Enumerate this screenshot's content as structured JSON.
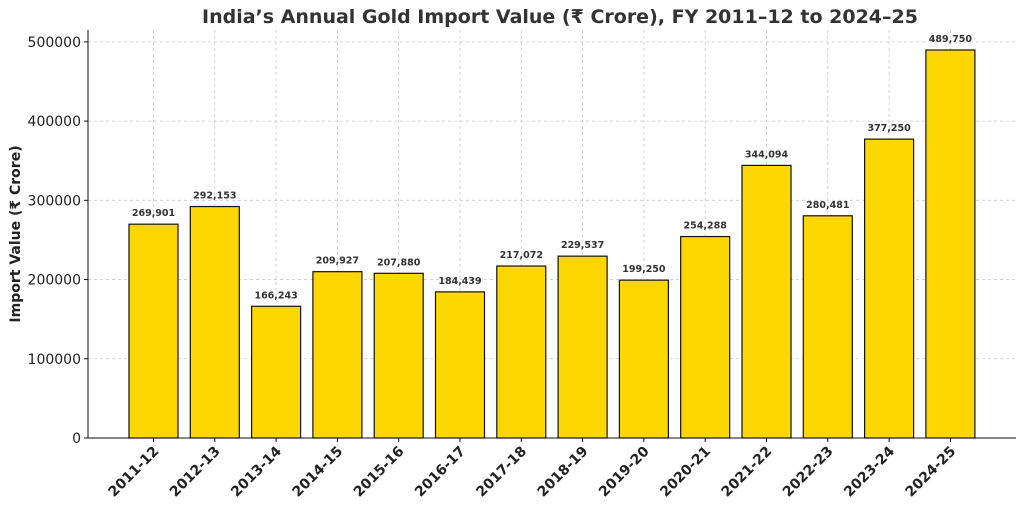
{
  "chart_data": {
    "type": "bar",
    "title": "India’s Annual Gold Import Value (₹ Crore), FY 2011–12 to 2024–25",
    "xlabel": "",
    "ylabel": "Import Value (₹ Crore)",
    "ylim": [
      0,
      515000
    ],
    "yticks": [
      0,
      100000,
      200000,
      300000,
      400000,
      500000
    ],
    "ytick_labels": [
      "0",
      "100000",
      "200000",
      "300000",
      "400000",
      "500000"
    ],
    "categories": [
      "2011-12",
      "2012-13",
      "2013-14",
      "2014-15",
      "2015-16",
      "2016-17",
      "2017-18",
      "2018-19",
      "2019-20",
      "2020-21",
      "2021-22",
      "2022-23",
      "2023-24",
      "2024-25"
    ],
    "values": [
      269901,
      292153,
      166243,
      209927,
      207880,
      184439,
      217072,
      229537,
      199250,
      254288,
      344094,
      280481,
      377250,
      489750
    ],
    "data_labels": [
      "269,901",
      "292,153",
      "166,243",
      "209,927",
      "207,880",
      "184,439",
      "217,072",
      "229,537",
      "199,250",
      "254,288",
      "344,094",
      "280,481",
      "377,250",
      "489,750"
    ],
    "bar_color": "#FFD700",
    "grid": true
  }
}
